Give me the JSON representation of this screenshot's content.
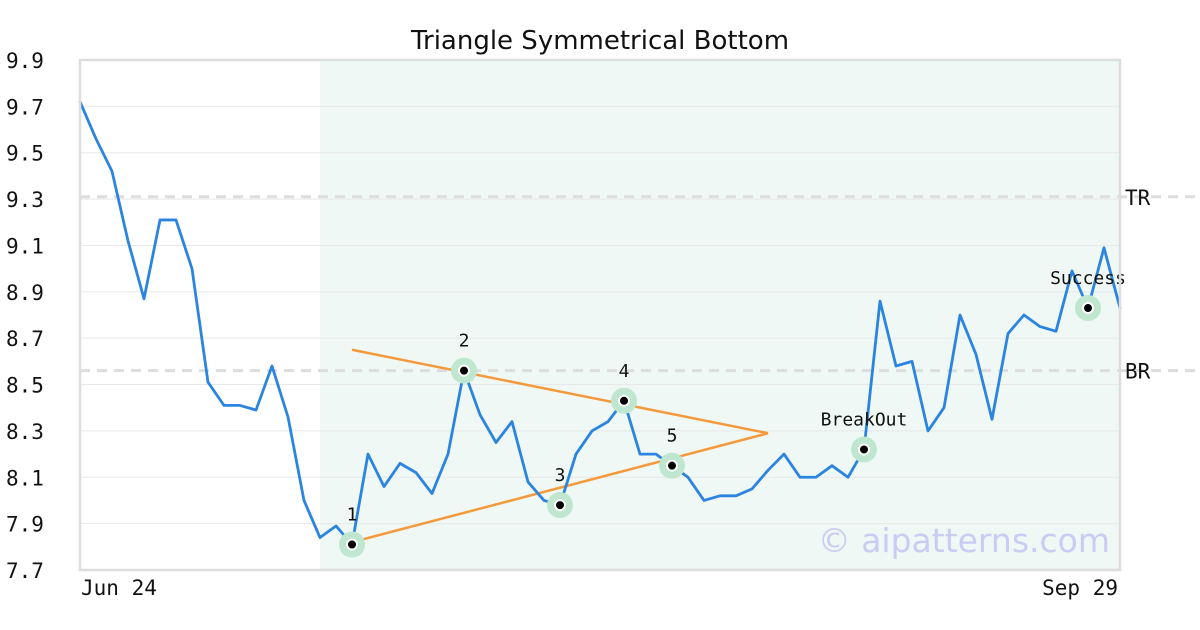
{
  "chart_data": {
    "type": "line",
    "title": "Triangle Symmetrical Bottom",
    "xlabel": "",
    "ylabel": "",
    "ylim": [
      7.7,
      9.9
    ],
    "yticks": [
      7.7,
      7.9,
      8.1,
      8.3,
      8.5,
      8.7,
      8.9,
      9.1,
      9.3,
      9.5,
      9.7,
      9.9
    ],
    "ytick_labels": [
      "7.7",
      "7.9",
      "8.1",
      "8.3",
      "8.5",
      "8.7",
      "8.9",
      "9.1",
      "9.3",
      "9.5",
      "9.7",
      "9.9"
    ],
    "xlim": [
      0,
      65
    ],
    "x_start_label": "Jun 24",
    "x_end_label": "Sep 29",
    "grid": true,
    "series": [
      {
        "color": "#2b84e0",
        "values": [
          9.72,
          9.56,
          9.42,
          9.12,
          8.87,
          9.21,
          9.21,
          9.0,
          8.51,
          8.41,
          8.41,
          8.39,
          8.58,
          8.36,
          8.0,
          7.84,
          7.89,
          7.81,
          8.2,
          8.06,
          8.16,
          8.12,
          8.03,
          8.2,
          8.56,
          8.37,
          8.25,
          8.34,
          8.08,
          8.0,
          7.98,
          8.2,
          8.3,
          8.34,
          8.43,
          8.2,
          8.2,
          8.15,
          8.1,
          8.0,
          8.02,
          8.02,
          8.05,
          8.13,
          8.2,
          8.1,
          8.1,
          8.15,
          8.1,
          8.22,
          8.86,
          8.58,
          8.6,
          8.3,
          8.4,
          8.8,
          8.63,
          8.35,
          8.72,
          8.8,
          8.75,
          8.73,
          8.99,
          8.83,
          9.09,
          8.83
        ]
      }
    ],
    "pattern_region": [
      15,
      65
    ],
    "trend_lines": [
      {
        "color": "#f59a3c",
        "from": [
          17,
          8.65
        ],
        "to": [
          43,
          8.29
        ]
      },
      {
        "color": "#f59a3c",
        "from": [
          17,
          7.82
        ],
        "to": [
          43,
          8.29
        ]
      }
    ],
    "horizontal_lines": [
      {
        "value": 9.31,
        "label": "TR"
      },
      {
        "value": 8.56,
        "label": "BR"
      }
    ],
    "points": [
      {
        "label": "1",
        "x": 17,
        "y": 7.81
      },
      {
        "label": "2",
        "x": 24,
        "y": 8.56
      },
      {
        "label": "3",
        "x": 30,
        "y": 7.98
      },
      {
        "label": "4",
        "x": 34,
        "y": 8.43
      },
      {
        "label": "5",
        "x": 37,
        "y": 8.15
      },
      {
        "label": "BreakOut",
        "x": 49,
        "y": 8.22
      },
      {
        "label": "Success",
        "x": 63,
        "y": 8.83
      }
    ],
    "watermark": "© aipatterns.com"
  }
}
